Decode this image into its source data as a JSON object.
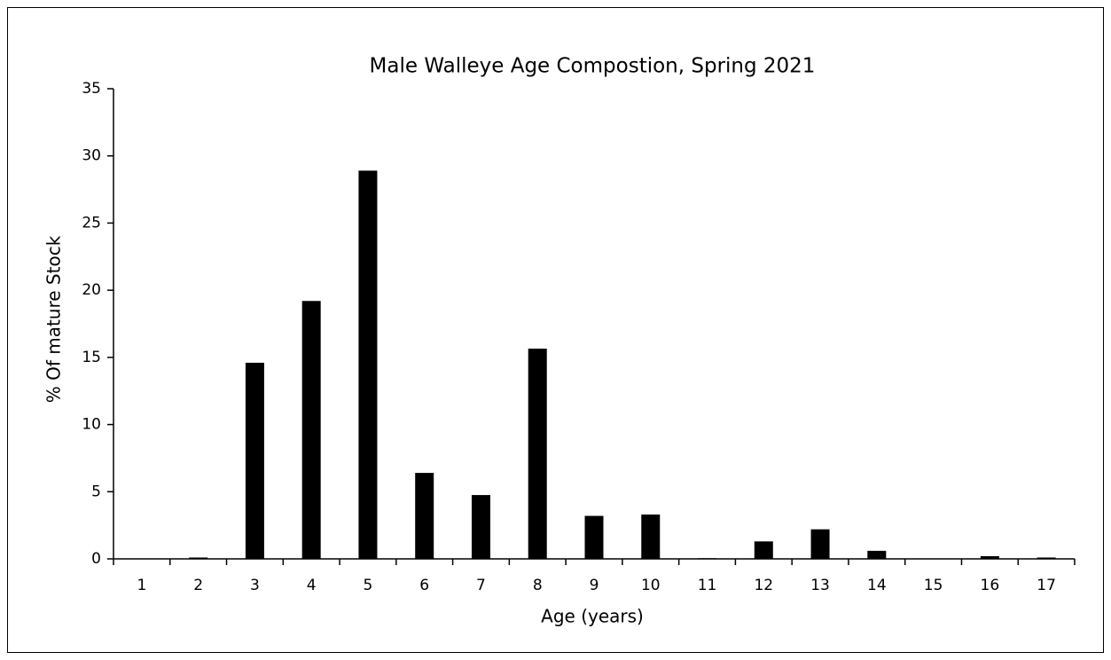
{
  "chart_data": {
    "type": "bar",
    "title": "Male Walleye Age Compostion, Spring 2021",
    "x_label": "Age (years)",
    "y_label": "% Of mature Stock",
    "categories": [
      "1",
      "2",
      "3",
      "4",
      "5",
      "6",
      "7",
      "8",
      "9",
      "10",
      "11",
      "12",
      "13",
      "14",
      "15",
      "16",
      "17"
    ],
    "values": [
      0,
      0.1,
      14.6,
      19.2,
      28.9,
      6.4,
      4.75,
      15.65,
      3.2,
      3.3,
      0.05,
      1.3,
      2.2,
      0.6,
      0,
      0.2,
      0.1
    ],
    "color": "#000000",
    "ylim": [
      0,
      35
    ],
    "yticks": [
      0,
      5,
      10,
      15,
      20,
      25,
      30,
      35
    ],
    "grid": false
  }
}
